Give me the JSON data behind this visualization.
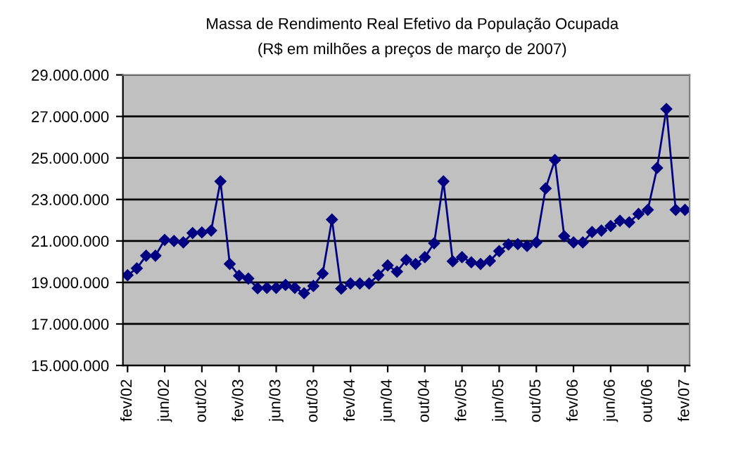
{
  "chart_data": {
    "type": "line",
    "title": "Massa de Rendimento Real Efetivo da População Ocupada",
    "subtitle": "(R$ em milhões a preços de março de 2007)",
    "categories": [
      "fev/02",
      null,
      null,
      null,
      "jun/02",
      null,
      null,
      null,
      "out/02",
      null,
      null,
      null,
      "fev/03",
      null,
      null,
      null,
      "jun/03",
      null,
      null,
      null,
      "out/03",
      null,
      null,
      null,
      "fev/04",
      null,
      null,
      null,
      "jun/04",
      null,
      null,
      null,
      "out/04",
      null,
      null,
      null,
      "fev/05",
      null,
      null,
      null,
      "jun/05",
      null,
      null,
      null,
      "out/05",
      null,
      null,
      null,
      "fev/06",
      null,
      null,
      null,
      "jun/06",
      null,
      null,
      null,
      "out/06",
      null,
      null,
      null,
      "fev/07"
    ],
    "series": [
      {
        "color": "#000080",
        "values": [
          19350000,
          19680000,
          20290000,
          20290000,
          21050000,
          21000000,
          20930000,
          21380000,
          21410000,
          21500000,
          23870000,
          19890000,
          19320000,
          19190000,
          18720000,
          18740000,
          18740000,
          18880000,
          18740000,
          18480000,
          18830000,
          19430000,
          22030000,
          18700000,
          18950000,
          18950000,
          18950000,
          19350000,
          19820000,
          19520000,
          20090000,
          19890000,
          20220000,
          20890000,
          23870000,
          20020000,
          20220000,
          19970000,
          19890000,
          20040000,
          20510000,
          20830000,
          20850000,
          20760000,
          20930000,
          23530000,
          24900000,
          21230000,
          20930000,
          20930000,
          21430000,
          21500000,
          21720000,
          21970000,
          21900000,
          22300000,
          22500000,
          24520000,
          27360000,
          22500000,
          22500000
        ]
      }
    ],
    "ylim": [
      15000000,
      29000000
    ],
    "yticks": [
      {
        "value": 15000000,
        "label": "15.000.000"
      },
      {
        "value": 17000000,
        "label": "17.000.000"
      },
      {
        "value": 19000000,
        "label": "19.000.000"
      },
      {
        "value": 21000000,
        "label": "21.000.000"
      },
      {
        "value": 23000000,
        "label": "23.000.000"
      },
      {
        "value": 25000000,
        "label": "25.000.000"
      },
      {
        "value": 27000000,
        "label": "27.000.000"
      },
      {
        "value": 29000000,
        "label": "29.000.000"
      }
    ],
    "grid": "y",
    "marker": "diamond",
    "line_style": "solid"
  }
}
